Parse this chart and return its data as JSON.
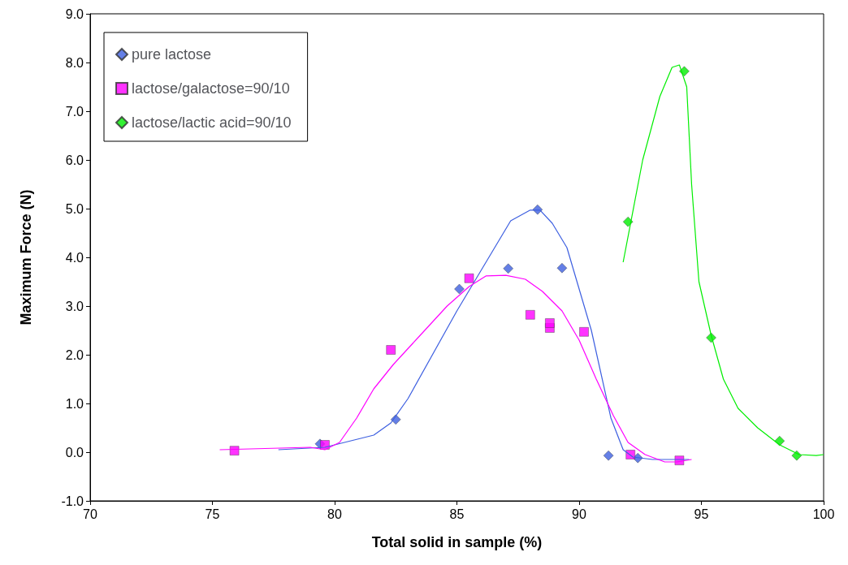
{
  "chart_data": {
    "type": "scatter",
    "xlabel": "Total solid in sample (%)",
    "ylabel": "Maximum Force (N)",
    "xlim": [
      70,
      100
    ],
    "xticks": [
      70,
      75,
      80,
      85,
      90,
      95,
      100
    ],
    "ylim": [
      -1,
      9
    ],
    "yticks": [
      {
        "value": -1,
        "label": "-1.0"
      },
      {
        "value": 0,
        "label": "0.0"
      },
      {
        "value": 1,
        "label": "1.0"
      },
      {
        "value": 2,
        "label": "2.0"
      },
      {
        "value": 3,
        "label": "3.0"
      },
      {
        "value": 4,
        "label": "4.0"
      },
      {
        "value": 5,
        "label": "5.0"
      },
      {
        "value": 6,
        "label": "6.0"
      },
      {
        "value": 7,
        "label": "7.0"
      },
      {
        "value": 8,
        "label": "8.0"
      },
      {
        "value": 9,
        "label": "9.0"
      }
    ],
    "grid": false,
    "legend": "top left",
    "series": [
      {
        "name": "pure lactose",
        "marker": "diamond",
        "color": "#3d5fe0",
        "x": [
          79.4,
          82.5,
          85.1,
          87.1,
          88.3,
          89.3,
          91.2,
          92.4
        ],
        "values": [
          0.17,
          0.67,
          3.35,
          3.77,
          4.98,
          3.78,
          -0.07,
          -0.12
        ]
      },
      {
        "name": "lactose/galactose=90/10",
        "marker": "square",
        "color": "#ff00ff",
        "x": [
          75.9,
          79.6,
          82.3,
          85.5,
          88.0,
          88.8,
          88.8,
          90.2,
          92.1,
          94.1
        ],
        "values": [
          0.03,
          0.15,
          2.1,
          3.57,
          2.82,
          2.55,
          2.65,
          2.47,
          -0.05,
          -0.17
        ]
      },
      {
        "name": "lactose/lactic acid=90/10",
        "marker": "diamond",
        "color": "#00ee00",
        "x": [
          92.0,
          94.3,
          95.4,
          98.2,
          98.9
        ],
        "values": [
          4.73,
          7.82,
          2.35,
          0.23,
          -0.07
        ]
      },
      {
        "type": "line",
        "marker": "none",
        "color": "#3d5fe0",
        "x": [
          77.7,
          79.6,
          81.6,
          82.3,
          83,
          85,
          87.2,
          88,
          88.4,
          88.9,
          89.5,
          90.5,
          91.3,
          91.8,
          92.2,
          93,
          94.5
        ],
        "values": [
          0.05,
          0.1,
          0.35,
          0.6,
          1.1,
          2.9,
          4.75,
          4.97,
          4.97,
          4.7,
          4.2,
          2.5,
          0.7,
          0.05,
          -0.1,
          -0.15,
          -0.15
        ]
      },
      {
        "type": "line",
        "marker": "none",
        "color": "#ff00ff",
        "x": [
          75.3,
          79,
          79.6,
          80.2,
          80.9,
          81.6,
          82.4,
          83.5,
          84.6,
          85.5,
          86.2,
          87,
          87.8,
          88.5,
          89.3,
          90,
          90.7,
          91.4,
          92,
          92.7,
          93.5,
          94,
          94.6
        ],
        "values": [
          0.05,
          0.1,
          0.05,
          0.2,
          0.7,
          1.3,
          1.8,
          2.4,
          3.0,
          3.4,
          3.62,
          3.63,
          3.55,
          3.3,
          2.9,
          2.3,
          1.5,
          0.75,
          0.2,
          -0.05,
          -0.2,
          -0.2,
          -0.15
        ]
      },
      {
        "type": "line",
        "marker": "none",
        "color": "#00ee00",
        "x": [
          91.8,
          92.6,
          93.3,
          93.8,
          94.1,
          94.4,
          94.6,
          94.9,
          95.4,
          95.9,
          96.5,
          97.3,
          98.2,
          99,
          99.7,
          100
        ],
        "values": [
          3.9,
          6.0,
          7.3,
          7.9,
          7.95,
          7.5,
          5.5,
          3.5,
          2.4,
          1.5,
          0.9,
          0.5,
          0.15,
          -0.05,
          -0.07,
          -0.05
        ]
      }
    ]
  }
}
